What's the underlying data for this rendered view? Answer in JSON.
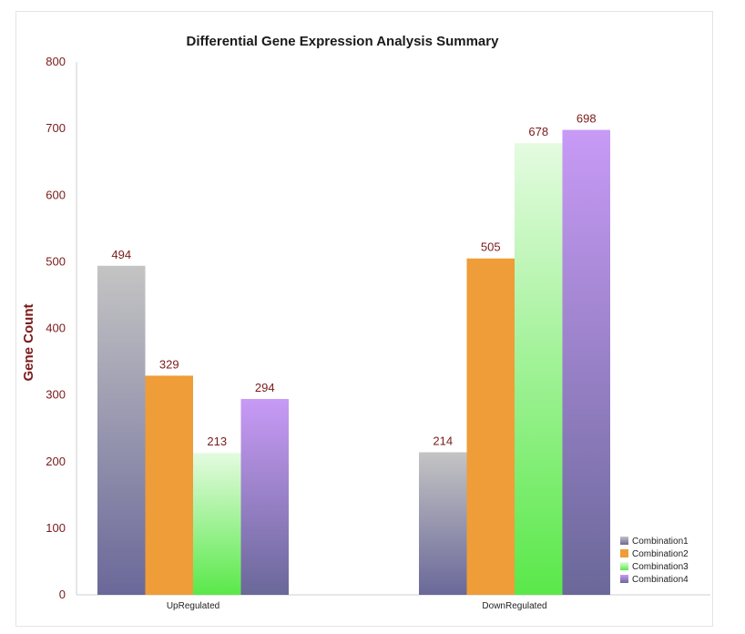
{
  "chart_data": {
    "type": "bar",
    "title": "Differential Gene Expression Analysis Summary",
    "xlabel": "",
    "ylabel": "Gene Count",
    "ylim": [
      0,
      800
    ],
    "yticks": [
      0,
      100,
      200,
      300,
      400,
      500,
      600,
      700,
      800
    ],
    "categories": [
      "UpRegulated",
      "DownRegulated"
    ],
    "series": [
      {
        "name": "Combination1",
        "values": [
          494,
          214
        ],
        "color_top": "#c4c4c4",
        "color_bottom": "#6a6899"
      },
      {
        "name": "Combination2",
        "values": [
          329,
          505
        ],
        "color_top": "#ef9d38",
        "color_bottom": "#ef9d38"
      },
      {
        "name": "Combination3",
        "values": [
          213,
          678
        ],
        "color_top": "#e4fbe0",
        "color_bottom": "#5ae84a"
      },
      {
        "name": "Combination4",
        "values": [
          294,
          698
        ],
        "color_top": "#c89af6",
        "color_bottom": "#6a6899"
      }
    ],
    "grid": false,
    "legend_position": "bottom-right",
    "data_labels": true
  }
}
